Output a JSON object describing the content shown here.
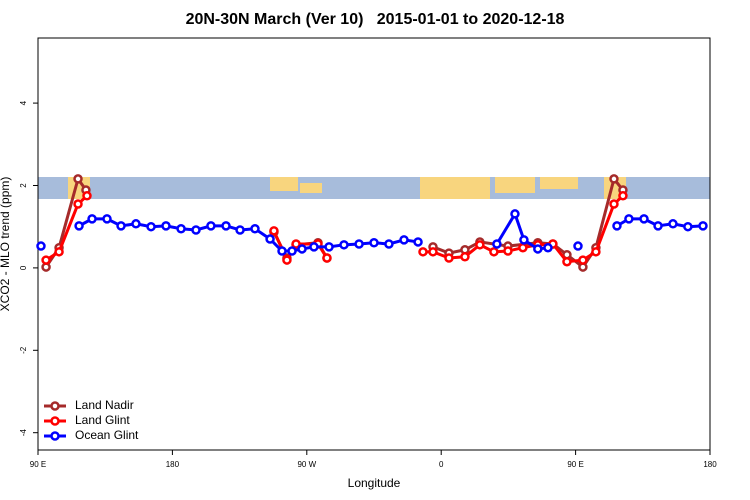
{
  "chart_data": {
    "type": "line",
    "title": "20N-30N March (Ver 10)   2015-01-01 to 2020-12-18",
    "x_label": "Longitude",
    "y_label": "XCO2 - MLO trend (ppm)",
    "xlim": [
      90,
      540
    ],
    "ylim": [
      -4.42,
      5.58
    ],
    "xticks": [
      {
        "value": 90,
        "label": "90 E"
      },
      {
        "value": 180,
        "label": "180"
      },
      {
        "value": 270,
        "label": "90 W"
      },
      {
        "value": 360,
        "label": "0"
      },
      {
        "value": 450,
        "label": "90 E"
      },
      {
        "value": 540,
        "label": "180"
      }
    ],
    "yticks": [
      -4,
      -2,
      0,
      2,
      4
    ],
    "legend": "bottom-left",
    "series": [
      {
        "name": "Land Nadir",
        "color": "#a52a2a",
        "x": [
          95.4,
          104.1,
          116.8,
          122.1,
          null,
          248.0,
          256.7,
          262.8,
          277.5,
          283.5,
          null,
          354.5,
          365.2,
          375.9,
          385.9,
          404.7,
          424.7,
          434.8,
          444.2,
          454.9,
          463.6,
          475.7,
          481.7
        ],
        "values": [
          0.02,
          0.49,
          2.16,
          1.89,
          null,
          0.87,
          0.24,
          0.56,
          0.61,
          0.24,
          null,
          0.51,
          0.36,
          0.44,
          0.63,
          0.53,
          0.61,
          0.58,
          0.32,
          0.02,
          0.49,
          2.16,
          1.89
        ]
      },
      {
        "name": "Land Glint",
        "color": "#ff0000",
        "x": [
          95.4,
          104.1,
          116.8,
          122.8,
          null,
          248.0,
          256.7,
          262.8,
          277.5,
          283.5,
          null,
          347.8,
          354.5,
          365.2,
          375.9,
          385.9,
          395.3,
          404.7,
          414.7,
          424.7,
          434.8,
          444.2,
          454.9,
          463.6,
          475.7,
          481.7
        ],
        "values": [
          0.19,
          0.39,
          1.55,
          1.75,
          null,
          0.9,
          0.19,
          0.58,
          0.58,
          0.24,
          null,
          0.39,
          0.39,
          0.24,
          0.27,
          0.56,
          0.39,
          0.41,
          0.49,
          0.56,
          0.58,
          0.15,
          0.19,
          0.39,
          1.55,
          1.75
        ]
      },
      {
        "name": "Ocean Glint",
        "color": "#0000ff",
        "x": [
          92.0,
          null,
          117.5,
          126.2,
          136.2,
          145.6,
          155.6,
          165.7,
          175.7,
          185.8,
          195.8,
          205.8,
          215.9,
          225.3,
          235.3,
          245.4,
          253.4,
          260.1,
          266.8,
          274.8,
          284.9,
          294.9,
          305.0,
          315.0,
          325.0,
          335.1,
          344.5,
          null,
          397.3,
          409.4,
          415.4,
          424.7,
          431.5,
          null,
          451.6,
          null,
          477.7,
          485.7,
          495.8,
          505.2,
          515.2,
          525.2,
          535.3
        ],
        "values": [
          0.53,
          null,
          1.02,
          1.19,
          1.19,
          1.02,
          1.07,
          1.0,
          1.02,
          0.95,
          0.92,
          1.02,
          1.02,
          0.92,
          0.95,
          0.7,
          0.41,
          0.41,
          0.46,
          0.51,
          0.51,
          0.56,
          0.58,
          0.61,
          0.58,
          0.68,
          0.63,
          null,
          0.58,
          1.31,
          0.68,
          0.46,
          0.49,
          null,
          0.53,
          null,
          1.02,
          1.19,
          1.19,
          1.02,
          1.07,
          1.0,
          1.02
        ]
      }
    ]
  }
}
